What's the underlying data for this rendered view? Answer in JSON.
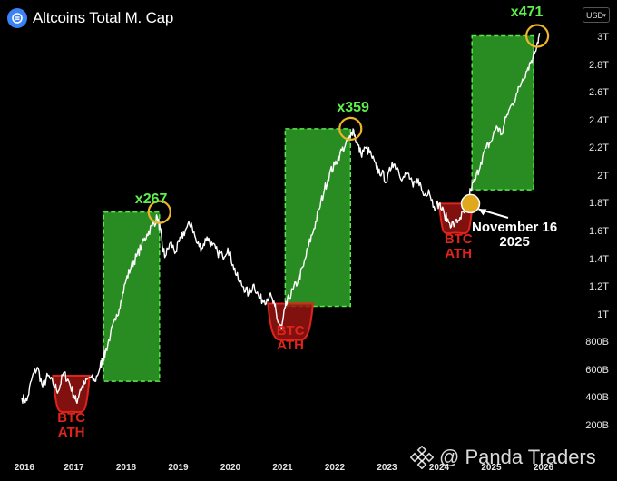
{
  "header": {
    "title": "Altcoins Total M. Cap",
    "currency": "USD"
  },
  "watermark": "@ Panda Traders",
  "chart_data": {
    "type": "line",
    "title": "Altcoins Total M. Cap",
    "ylim": [
      0.12,
      3.1
    ],
    "xlim": [
      2016.0,
      2026.25
    ],
    "y_ticks": [
      {
        "value": 3.0,
        "label": "3T"
      },
      {
        "value": 2.8,
        "label": "2.8T"
      },
      {
        "value": 2.6,
        "label": "2.6T"
      },
      {
        "value": 2.4,
        "label": "2.4T"
      },
      {
        "value": 2.2,
        "label": "2.2T"
      },
      {
        "value": 2.0,
        "label": "2T"
      },
      {
        "value": 1.8,
        "label": "1.8T"
      },
      {
        "value": 1.6,
        "label": "1.6T"
      },
      {
        "value": 1.4,
        "label": "1.4T"
      },
      {
        "value": 1.2,
        "label": "1.2T"
      },
      {
        "value": 1.0,
        "label": "1T"
      },
      {
        "value": 0.8,
        "label": "800B"
      },
      {
        "value": 0.6,
        "label": "600B"
      },
      {
        "value": 0.4,
        "label": "400B"
      },
      {
        "value": 0.2,
        "label": "200B"
      }
    ],
    "x_ticks": [
      {
        "value": 2016.05,
        "label": "2016"
      },
      {
        "value": 2017.0,
        "label": "2017"
      },
      {
        "value": 2018.0,
        "label": "2018"
      },
      {
        "value": 2019.0,
        "label": "2019"
      },
      {
        "value": 2020.0,
        "label": "2020"
      },
      {
        "value": 2021.0,
        "label": "2021"
      },
      {
        "value": 2022.0,
        "label": "2022"
      },
      {
        "value": 2023.0,
        "label": "2023"
      },
      {
        "value": 2024.0,
        "label": "2024"
      },
      {
        "value": 2025.0,
        "label": "2025"
      },
      {
        "value": 2026.0,
        "label": "2026"
      }
    ],
    "series": [
      {
        "color": "#ffffff",
        "points": [
          [
            2016.0,
            0.4
          ],
          [
            2016.1,
            0.38
          ],
          [
            2016.2,
            0.55
          ],
          [
            2016.3,
            0.62
          ],
          [
            2016.4,
            0.48
          ],
          [
            2016.5,
            0.56
          ],
          [
            2016.6,
            0.5
          ],
          [
            2016.7,
            0.45
          ],
          [
            2016.8,
            0.58
          ],
          [
            2016.9,
            0.52
          ],
          [
            2017.0,
            0.42
          ],
          [
            2017.05,
            0.37
          ],
          [
            2017.12,
            0.46
          ],
          [
            2017.2,
            0.5
          ],
          [
            2017.3,
            0.55
          ],
          [
            2017.4,
            0.52
          ],
          [
            2017.5,
            0.62
          ],
          [
            2017.55,
            0.68
          ],
          [
            2017.6,
            0.72
          ],
          [
            2017.7,
            0.86
          ],
          [
            2017.8,
            0.96
          ],
          [
            2017.9,
            1.1
          ],
          [
            2018.0,
            1.25
          ],
          [
            2018.1,
            1.35
          ],
          [
            2018.2,
            1.42
          ],
          [
            2018.3,
            1.5
          ],
          [
            2018.4,
            1.58
          ],
          [
            2018.5,
            1.64
          ],
          [
            2018.6,
            1.7
          ],
          [
            2018.65,
            1.62
          ],
          [
            2018.7,
            1.48
          ],
          [
            2018.75,
            1.42
          ],
          [
            2018.85,
            1.52
          ],
          [
            2018.95,
            1.45
          ],
          [
            2019.05,
            1.55
          ],
          [
            2019.15,
            1.62
          ],
          [
            2019.25,
            1.66
          ],
          [
            2019.35,
            1.52
          ],
          [
            2019.45,
            1.48
          ],
          [
            2019.55,
            1.56
          ],
          [
            2019.65,
            1.5
          ],
          [
            2019.75,
            1.45
          ],
          [
            2019.85,
            1.42
          ],
          [
            2019.95,
            1.48
          ],
          [
            2020.05,
            1.36
          ],
          [
            2020.15,
            1.25
          ],
          [
            2020.25,
            1.2
          ],
          [
            2020.35,
            1.15
          ],
          [
            2020.45,
            1.22
          ],
          [
            2020.55,
            1.12
          ],
          [
            2020.65,
            1.1
          ],
          [
            2020.75,
            1.14
          ],
          [
            2020.85,
            1.06
          ],
          [
            2020.9,
            0.96
          ],
          [
            2020.98,
            0.9
          ],
          [
            2021.05,
            1.05
          ],
          [
            2021.12,
            1.12
          ],
          [
            2021.2,
            1.18
          ],
          [
            2021.3,
            1.25
          ],
          [
            2021.4,
            1.35
          ],
          [
            2021.5,
            1.5
          ],
          [
            2021.6,
            1.62
          ],
          [
            2021.7,
            1.76
          ],
          [
            2021.8,
            1.9
          ],
          [
            2021.9,
            2.02
          ],
          [
            2022.0,
            2.08
          ],
          [
            2022.1,
            2.16
          ],
          [
            2022.2,
            2.22
          ],
          [
            2022.3,
            2.28
          ],
          [
            2022.35,
            2.34
          ],
          [
            2022.42,
            2.24
          ],
          [
            2022.5,
            2.16
          ],
          [
            2022.6,
            2.2
          ],
          [
            2022.7,
            2.15
          ],
          [
            2022.8,
            2.05
          ],
          [
            2022.9,
            2.02
          ],
          [
            2023.0,
            1.96
          ],
          [
            2023.1,
            2.1
          ],
          [
            2023.2,
            2.06
          ],
          [
            2023.3,
            1.98
          ],
          [
            2023.4,
            2.02
          ],
          [
            2023.5,
            1.92
          ],
          [
            2023.6,
            1.98
          ],
          [
            2023.7,
            1.86
          ],
          [
            2023.8,
            1.9
          ],
          [
            2023.9,
            1.78
          ],
          [
            2024.0,
            1.8
          ],
          [
            2024.1,
            1.72
          ],
          [
            2024.2,
            1.66
          ],
          [
            2024.3,
            1.65
          ],
          [
            2024.4,
            1.7
          ],
          [
            2024.5,
            1.74
          ],
          [
            2024.55,
            1.8
          ],
          [
            2024.6,
            1.9
          ],
          [
            2024.7,
            1.98
          ],
          [
            2024.8,
            2.1
          ],
          [
            2024.9,
            2.2
          ],
          [
            2025.0,
            2.25
          ],
          [
            2025.1,
            2.36
          ],
          [
            2025.2,
            2.3
          ],
          [
            2025.3,
            2.44
          ],
          [
            2025.4,
            2.52
          ],
          [
            2025.5,
            2.6
          ],
          [
            2025.6,
            2.7
          ],
          [
            2025.7,
            2.78
          ],
          [
            2025.8,
            2.86
          ],
          [
            2025.88,
            2.96
          ],
          [
            2025.93,
            3.02
          ]
        ]
      }
    ],
    "annotations": {
      "multipliers": [
        {
          "label": "x267",
          "x": 2018.48,
          "y": 1.82
        },
        {
          "label": "x359",
          "x": 2022.35,
          "y": 2.48
        },
        {
          "label": "x471",
          "x": 2025.68,
          "y": 3.17
        }
      ],
      "btc_ath": [
        {
          "label_line1": "BTC",
          "label_line2": "ATH",
          "x": 2016.95,
          "y": 0.25
        },
        {
          "label_line1": "BTC",
          "label_line2": "ATH",
          "x": 2021.15,
          "y": 0.88
        },
        {
          "label_line1": "BTC",
          "label_line2": "ATH",
          "x": 2024.37,
          "y": 1.54
        }
      ],
      "note": {
        "line1": "November 16",
        "line2": "2025"
      }
    }
  }
}
